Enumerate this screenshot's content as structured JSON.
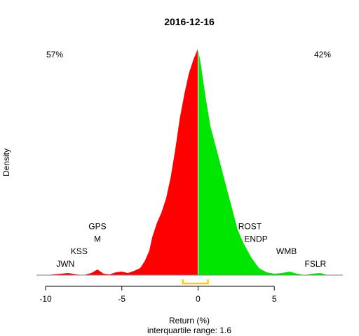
{
  "chart_data": {
    "type": "area",
    "title": "2016-12-16",
    "xlabel": "Return (%)",
    "subtitle": "interquartile range: 1.6",
    "ylabel": "Density",
    "xlim": [
      -10.6,
      9.5
    ],
    "ylim": [
      0,
      0.335
    ],
    "x_ticks": [
      -10,
      -5,
      0,
      5
    ],
    "colors": {
      "negative": "#ff0000",
      "positive": "#00e600",
      "iqr": "#ffcc00",
      "axis": "#7f7f7f"
    },
    "left_pct": {
      "label": "57%",
      "color": "#ff0000"
    },
    "right_pct": {
      "label": "42%",
      "color": "#009900"
    },
    "iqr": [
      -1.0,
      0.65
    ],
    "density_points": [
      [
        -10.0,
        0.0
      ],
      [
        -9.0,
        0.002
      ],
      [
        -8.5,
        0.003
      ],
      [
        -8.0,
        0.001
      ],
      [
        -7.5,
        0.0
      ],
      [
        -7.0,
        0.003
      ],
      [
        -6.6,
        0.008
      ],
      [
        -6.2,
        0.002
      ],
      [
        -5.8,
        0.001
      ],
      [
        -5.4,
        0.004
      ],
      [
        -5.0,
        0.005
      ],
      [
        -4.6,
        0.003
      ],
      [
        -4.2,
        0.006
      ],
      [
        -3.8,
        0.01
      ],
      [
        -3.5,
        0.02
      ],
      [
        -3.2,
        0.035
      ],
      [
        -3.0,
        0.055
      ],
      [
        -2.7,
        0.075
      ],
      [
        -2.4,
        0.09
      ],
      [
        -2.1,
        0.11
      ],
      [
        -1.8,
        0.14
      ],
      [
        -1.5,
        0.18
      ],
      [
        -1.2,
        0.225
      ],
      [
        -0.9,
        0.26
      ],
      [
        -0.6,
        0.29
      ],
      [
        -0.3,
        0.31
      ],
      [
        0.0,
        0.326
      ],
      [
        0.2,
        0.3
      ],
      [
        0.5,
        0.255
      ],
      [
        0.8,
        0.215
      ],
      [
        1.1,
        0.19
      ],
      [
        1.4,
        0.165
      ],
      [
        1.7,
        0.14
      ],
      [
        2.0,
        0.115
      ],
      [
        2.3,
        0.09
      ],
      [
        2.6,
        0.065
      ],
      [
        3.0,
        0.045
      ],
      [
        3.5,
        0.025
      ],
      [
        4.0,
        0.01
      ],
      [
        4.5,
        0.004
      ],
      [
        5.0,
        0.002
      ],
      [
        5.5,
        0.003
      ],
      [
        6.0,
        0.005
      ],
      [
        6.5,
        0.002
      ],
      [
        7.0,
        0.0
      ],
      [
        7.5,
        0.002
      ],
      [
        8.0,
        0.003
      ],
      [
        8.5,
        0.0
      ]
    ],
    "labels": [
      {
        "text": "JWN",
        "x": -8.7,
        "y": 0.012
      },
      {
        "text": "KSS",
        "x": -7.8,
        "y": 0.03
      },
      {
        "text": "M",
        "x": -6.6,
        "y": 0.048
      },
      {
        "text": "GPS",
        "x": -6.6,
        "y": 0.066
      },
      {
        "text": "ROST",
        "x": 3.4,
        "y": 0.066
      },
      {
        "text": "ENDP",
        "x": 3.8,
        "y": 0.048
      },
      {
        "text": "WMB",
        "x": 5.8,
        "y": 0.03
      },
      {
        "text": "FSLR",
        "x": 7.7,
        "y": 0.012
      }
    ]
  }
}
